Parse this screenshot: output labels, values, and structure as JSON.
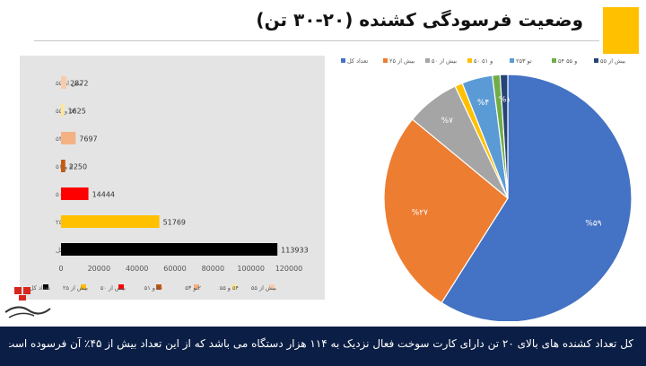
{
  "header": {
    "title": "وضعیت فرسودگی کشنده (۲۰-۳۰ تن)"
  },
  "footer": {
    "text": "کل تعداد کشنده های بالای ۲۰ تن دارای کارت سوخت فعال نزدیک به ۱۱۴ هزار دستگاه می باشد که از این تعداد بیش از ۴۵٪ آن فرسوده است."
  },
  "colors": {
    "footer_bg": "#0b1e45",
    "accent": "#FFC000",
    "panel_bg": "#e4e4e4"
  },
  "chart_data": [
    {
      "type": "bar",
      "orientation": "horizontal",
      "categories": [
        "بیش از ۵۵",
        "۵۴ و ۵۵",
        "۲ تو ۵۳",
        "۵۰ و ۵۱",
        "بیش از ۵۰",
        "بیش از ۲۵",
        "تعداد کل"
      ],
      "values": [
        2872,
        1625,
        7697,
        2250,
        14444,
        51769,
        113933
      ],
      "colors": [
        "#F8CBAD",
        "#FFE699",
        "#F4B183",
        "#C55A11",
        "#FF0000",
        "#FFC000",
        "#000000"
      ],
      "xticks": [
        "0",
        "20000",
        "40000",
        "60000",
        "80000",
        "100000",
        "120000"
      ],
      "xlim": [
        0,
        120000
      ],
      "legend": [
        "تعداد کل",
        "بیش از ۲۵",
        "بیش از ۵۰",
        "۵۰ و ۵۱",
        "۲تو ۵۳",
        "۵۴ و ۵۵",
        "بیش از ۵۵"
      ],
      "legend_position": "bottom"
    },
    {
      "type": "pie",
      "labels": [
        "تعداد کل",
        "بیش از ۲۵",
        "بیش از ۵۰",
        "۵۰ و ۵۱",
        "۲تو ۵۳",
        "۵۴ و ۵۵",
        "بیش از ۵۵"
      ],
      "values": [
        59,
        27,
        7,
        1,
        4,
        1,
        1
      ],
      "data_labels": [
        "%۵۹",
        "%۲۷",
        "%۷",
        "",
        "%۴",
        "",
        "%۱"
      ],
      "colors": [
        "#4472C4",
        "#ED7D31",
        "#A5A5A5",
        "#FFC000",
        "#5B9BD5",
        "#70AD47",
        "#264478"
      ],
      "legend_position": "top"
    }
  ]
}
